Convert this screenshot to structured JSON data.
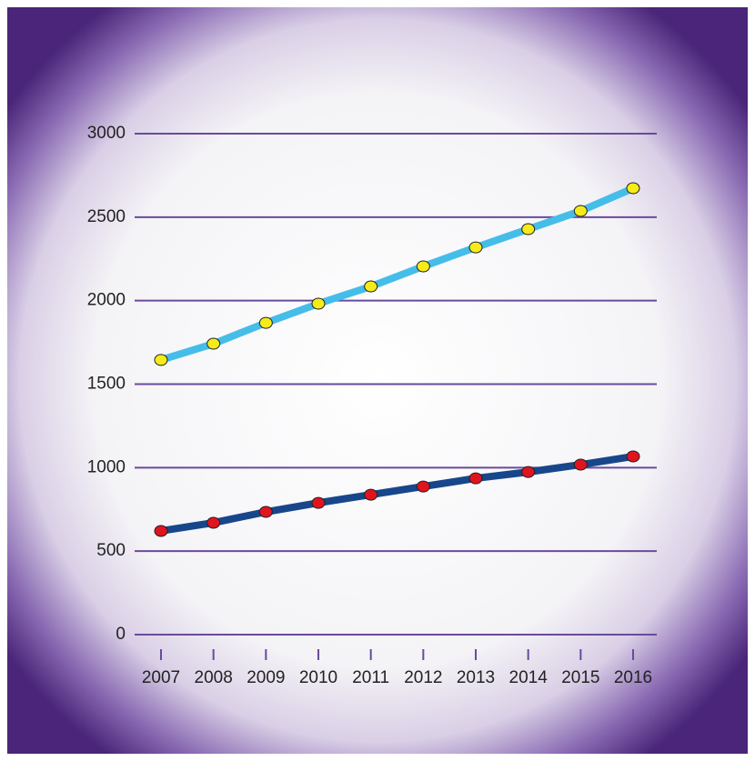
{
  "chart_data": {
    "type": "line",
    "categories": [
      "2007",
      "2008",
      "2009",
      "2010",
      "2011",
      "2012",
      "2013",
      "2014",
      "2015",
      "2016"
    ],
    "series": [
      {
        "color": "#45bde9",
        "marker_color": "#f5eb1a",
        "values": [
          1645,
          1742,
          1867,
          1982,
          2085,
          2205,
          2319,
          2428,
          2537,
          2673
        ]
      },
      {
        "color": "#17478a",
        "marker_color": "#e0141e",
        "values": [
          621,
          670,
          735,
          789,
          838,
          887,
          936,
          974,
          1018,
          1067
        ]
      }
    ],
    "ylim": [
      0,
      3000
    ],
    "yticks": [
      0,
      500,
      1000,
      1500,
      2000,
      2500,
      3000
    ],
    "grid": true,
    "grid_color": "#6a4a9c"
  }
}
